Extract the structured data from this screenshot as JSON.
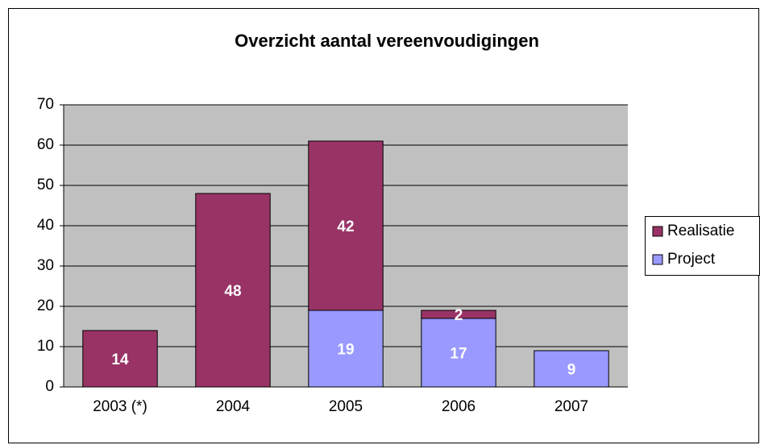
{
  "chart_data": {
    "type": "stacked_bar",
    "title": "Overzicht aantal vereenvoudigingen",
    "categories": [
      "2003 (*)",
      "2004",
      "2005",
      "2006",
      "2007"
    ],
    "series": [
      {
        "name": "Project",
        "color": "#9999ff",
        "values": [
          null,
          null,
          19,
          17,
          9
        ]
      },
      {
        "name": "Realisatie",
        "color": "#993366",
        "values": [
          14,
          48,
          42,
          2,
          null
        ]
      }
    ],
    "ylim": [
      0,
      70
    ],
    "yticks": [
      0,
      10,
      20,
      30,
      40,
      50,
      60,
      70
    ],
    "grid": true,
    "legend": "right",
    "plot_background": "#c0c0c0"
  }
}
